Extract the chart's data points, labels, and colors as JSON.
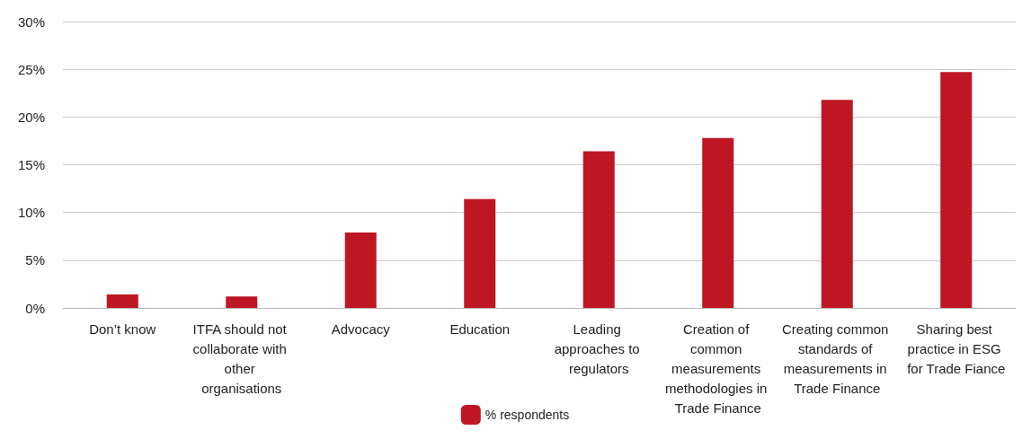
{
  "chart_data": {
    "type": "bar",
    "categories": [
      "Don’t know",
      "ITFA should not collaborate with other organisations",
      "Advocacy",
      "Education",
      "Leading approaches to regulators",
      "Creation of common measurements methodologies in Trade Finance",
      "Creating common standards of measurements in Trade Finance",
      "Sharing best practice in ESG for Trade Fiance"
    ],
    "series": [
      {
        "name": "% respondents",
        "color": "#be1622",
        "values": [
          1.4,
          1.2,
          7.9,
          11.4,
          16.4,
          17.8,
          21.8,
          24.7
        ]
      }
    ],
    "ylim": [
      0,
      30
    ],
    "yticks": [
      {
        "value": 0,
        "label": "0%"
      },
      {
        "value": 5,
        "label": "5%"
      },
      {
        "value": 10,
        "label": "10%"
      },
      {
        "value": 15,
        "label": "15%"
      },
      {
        "value": 20,
        "label": "20%"
      },
      {
        "value": 25,
        "label": "25%"
      },
      {
        "value": 30,
        "label": "30%"
      }
    ],
    "grid": "y",
    "legend": "bottom"
  }
}
